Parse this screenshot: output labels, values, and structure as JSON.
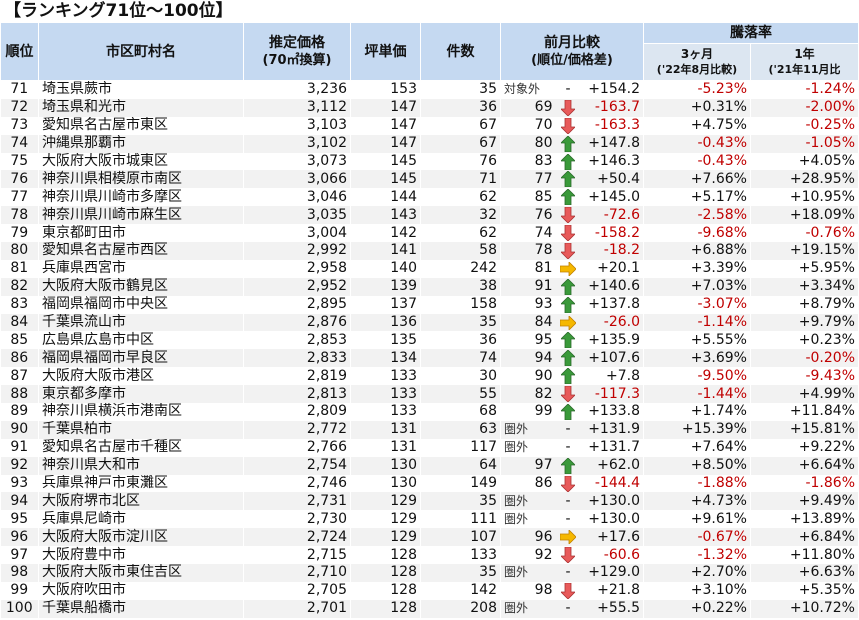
{
  "title": "【ランキング71位～100位】",
  "headers": {
    "rank": "順位",
    "name": "市区町村名",
    "price": "推定価格",
    "price_sub": "(70㎡換算)",
    "tsubo": "坪単価",
    "count": "件数",
    "prev": "前月比較",
    "prev_sub": "(順位/価格差)",
    "change": "騰落率",
    "m3": "3ヶ月",
    "m3_sub": "('22年8月比較)",
    "y1": "1年",
    "y1_sub": "('21年11月比"
  },
  "colors": {
    "header": "#c5d9f1",
    "subheader": "#dce6f1",
    "negative": "#c00000",
    "up": "#3a9a3a",
    "down": "#e85a5a",
    "flat": "#f5b800"
  },
  "rows": [
    {
      "rank": "71",
      "name": "埼玉県蕨市",
      "price": "3,236",
      "tsubo": "153",
      "count": "35",
      "prev_rank": "対象外",
      "arrow": "none",
      "diff": "+154.2",
      "m3": "-5.23%",
      "y1": "-1.24%"
    },
    {
      "rank": "72",
      "name": "埼玉県和光市",
      "price": "3,112",
      "tsubo": "147",
      "count": "36",
      "prev_rank": "69",
      "arrow": "down",
      "diff": "-163.7",
      "m3": "+0.31%",
      "y1": "-2.00%"
    },
    {
      "rank": "73",
      "name": "愛知県名古屋市東区",
      "price": "3,103",
      "tsubo": "147",
      "count": "67",
      "prev_rank": "70",
      "arrow": "down",
      "diff": "-163.3",
      "m3": "+4.75%",
      "y1": "-0.25%"
    },
    {
      "rank": "74",
      "name": "沖縄県那覇市",
      "price": "3,102",
      "tsubo": "147",
      "count": "67",
      "prev_rank": "80",
      "arrow": "up",
      "diff": "+147.8",
      "m3": "-0.43%",
      "y1": "-1.05%"
    },
    {
      "rank": "75",
      "name": "大阪府大阪市城東区",
      "price": "3,073",
      "tsubo": "145",
      "count": "76",
      "prev_rank": "83",
      "arrow": "up",
      "diff": "+146.3",
      "m3": "-0.43%",
      "y1": "+4.05%"
    },
    {
      "rank": "76",
      "name": "神奈川県相模原市南区",
      "price": "3,066",
      "tsubo": "145",
      "count": "71",
      "prev_rank": "77",
      "arrow": "up",
      "diff": "+50.4",
      "m3": "+7.66%",
      "y1": "+28.95%"
    },
    {
      "rank": "77",
      "name": "神奈川県川崎市多摩区",
      "price": "3,046",
      "tsubo": "144",
      "count": "62",
      "prev_rank": "85",
      "arrow": "up",
      "diff": "+145.0",
      "m3": "+5.17%",
      "y1": "+10.95%"
    },
    {
      "rank": "78",
      "name": "神奈川県川崎市麻生区",
      "price": "3,035",
      "tsubo": "143",
      "count": "32",
      "prev_rank": "76",
      "arrow": "down",
      "diff": "-72.6",
      "m3": "-2.58%",
      "y1": "+18.09%"
    },
    {
      "rank": "79",
      "name": "東京都町田市",
      "price": "3,004",
      "tsubo": "142",
      "count": "62",
      "prev_rank": "74",
      "arrow": "down",
      "diff": "-158.2",
      "m3": "-9.68%",
      "y1": "-0.76%"
    },
    {
      "rank": "80",
      "name": "愛知県名古屋市西区",
      "price": "2,992",
      "tsubo": "141",
      "count": "58",
      "prev_rank": "78",
      "arrow": "down",
      "diff": "-18.2",
      "m3": "+6.88%",
      "y1": "+19.15%"
    },
    {
      "rank": "81",
      "name": "兵庫県西宮市",
      "price": "2,958",
      "tsubo": "140",
      "count": "242",
      "prev_rank": "81",
      "arrow": "right",
      "diff": "+20.1",
      "m3": "+3.39%",
      "y1": "+5.95%"
    },
    {
      "rank": "82",
      "name": "大阪府大阪市鶴見区",
      "price": "2,952",
      "tsubo": "139",
      "count": "38",
      "prev_rank": "91",
      "arrow": "up",
      "diff": "+140.6",
      "m3": "+7.03%",
      "y1": "+3.34%"
    },
    {
      "rank": "83",
      "name": "福岡県福岡市中央区",
      "price": "2,895",
      "tsubo": "137",
      "count": "158",
      "prev_rank": "93",
      "arrow": "up",
      "diff": "+137.8",
      "m3": "-3.07%",
      "y1": "+8.79%"
    },
    {
      "rank": "84",
      "name": "千葉県流山市",
      "price": "2,876",
      "tsubo": "136",
      "count": "35",
      "prev_rank": "84",
      "arrow": "right",
      "diff": "-26.0",
      "m3": "-1.14%",
      "y1": "+9.79%"
    },
    {
      "rank": "85",
      "name": "広島県広島市中区",
      "price": "2,853",
      "tsubo": "135",
      "count": "36",
      "prev_rank": "95",
      "arrow": "up",
      "diff": "+135.9",
      "m3": "+5.55%",
      "y1": "+0.23%"
    },
    {
      "rank": "86",
      "name": "福岡県福岡市早良区",
      "price": "2,833",
      "tsubo": "134",
      "count": "74",
      "prev_rank": "94",
      "arrow": "up",
      "diff": "+107.6",
      "m3": "+3.69%",
      "y1": "-0.20%"
    },
    {
      "rank": "87",
      "name": "大阪府大阪市港区",
      "price": "2,819",
      "tsubo": "133",
      "count": "30",
      "prev_rank": "90",
      "arrow": "up",
      "diff": "+7.8",
      "m3": "-9.50%",
      "y1": "-9.43%"
    },
    {
      "rank": "88",
      "name": "東京都多摩市",
      "price": "2,813",
      "tsubo": "133",
      "count": "55",
      "prev_rank": "82",
      "arrow": "down",
      "diff": "-117.3",
      "m3": "-1.44%",
      "y1": "+4.99%"
    },
    {
      "rank": "89",
      "name": "神奈川県横浜市港南区",
      "price": "2,809",
      "tsubo": "133",
      "count": "68",
      "prev_rank": "99",
      "arrow": "up",
      "diff": "+133.8",
      "m3": "+1.74%",
      "y1": "+11.84%"
    },
    {
      "rank": "90",
      "name": "千葉県柏市",
      "price": "2,772",
      "tsubo": "131",
      "count": "63",
      "prev_rank": "圏外",
      "arrow": "none",
      "diff": "+131.9",
      "m3": "+15.39%",
      "y1": "+15.81%"
    },
    {
      "rank": "91",
      "name": "愛知県名古屋市千種区",
      "price": "2,766",
      "tsubo": "131",
      "count": "117",
      "prev_rank": "圏外",
      "arrow": "none",
      "diff": "+131.7",
      "m3": "+7.64%",
      "y1": "+9.22%"
    },
    {
      "rank": "92",
      "name": "神奈川県大和市",
      "price": "2,754",
      "tsubo": "130",
      "count": "64",
      "prev_rank": "97",
      "arrow": "up",
      "diff": "+62.0",
      "m3": "+8.50%",
      "y1": "+6.64%"
    },
    {
      "rank": "93",
      "name": "兵庫県神戸市東灘区",
      "price": "2,746",
      "tsubo": "130",
      "count": "149",
      "prev_rank": "86",
      "arrow": "down",
      "diff": "-144.4",
      "m3": "-1.88%",
      "y1": "-1.86%"
    },
    {
      "rank": "94",
      "name": "大阪府堺市北区",
      "price": "2,731",
      "tsubo": "129",
      "count": "35",
      "prev_rank": "圏外",
      "arrow": "none",
      "diff": "+130.0",
      "m3": "+4.73%",
      "y1": "+9.49%"
    },
    {
      "rank": "95",
      "name": "兵庫県尼崎市",
      "price": "2,730",
      "tsubo": "129",
      "count": "111",
      "prev_rank": "圏外",
      "arrow": "none",
      "diff": "+130.0",
      "m3": "+9.61%",
      "y1": "+13.89%"
    },
    {
      "rank": "96",
      "name": "大阪府大阪市淀川区",
      "price": "2,724",
      "tsubo": "129",
      "count": "107",
      "prev_rank": "96",
      "arrow": "right",
      "diff": "+17.6",
      "m3": "-0.67%",
      "y1": "+6.84%"
    },
    {
      "rank": "97",
      "name": "大阪府豊中市",
      "price": "2,715",
      "tsubo": "128",
      "count": "133",
      "prev_rank": "92",
      "arrow": "down",
      "diff": "-60.6",
      "m3": "-1.32%",
      "y1": "+11.80%"
    },
    {
      "rank": "98",
      "name": "大阪府大阪市東住吉区",
      "price": "2,710",
      "tsubo": "128",
      "count": "35",
      "prev_rank": "圏外",
      "arrow": "none",
      "diff": "+129.0",
      "m3": "+2.70%",
      "y1": "+6.63%"
    },
    {
      "rank": "99",
      "name": "大阪府吹田市",
      "price": "2,705",
      "tsubo": "128",
      "count": "142",
      "prev_rank": "98",
      "arrow": "down",
      "diff": "+21.8",
      "m3": "+3.10%",
      "y1": "+5.35%"
    },
    {
      "rank": "100",
      "name": "千葉県船橋市",
      "price": "2,701",
      "tsubo": "128",
      "count": "208",
      "prev_rank": "圏外",
      "arrow": "none",
      "diff": "+55.5",
      "m3": "+0.22%",
      "y1": "+10.72%"
    }
  ]
}
